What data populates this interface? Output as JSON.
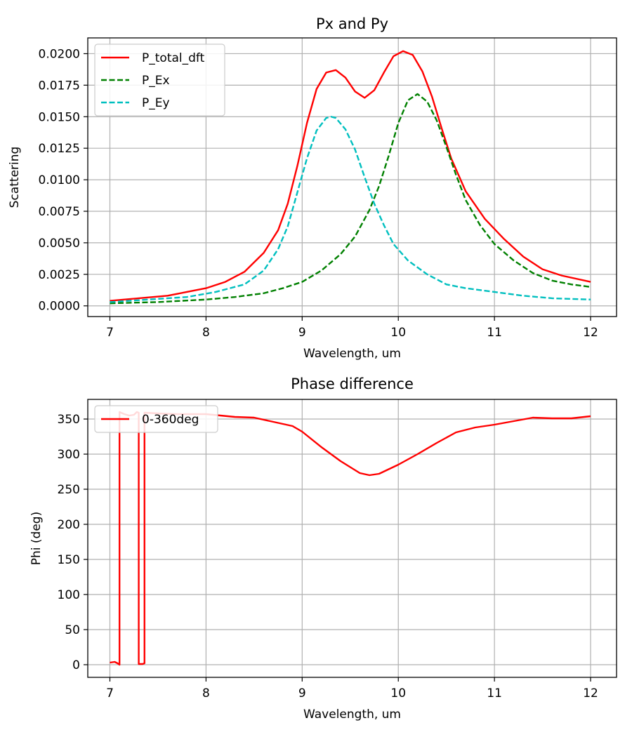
{
  "chart_data": [
    {
      "type": "line",
      "title": "Px and Py",
      "xlabel": "Wavelength, um",
      "ylabel": "Scattering",
      "xlim": [
        6.77,
        12.27
      ],
      "ylim": [
        -0.00085,
        0.02125
      ],
      "xticks": [
        7,
        8,
        9,
        10,
        11,
        12
      ],
      "xtick_labels": [
        "7",
        "8",
        "9",
        "10",
        "11",
        "12"
      ],
      "yticks": [
        0,
        0.0025,
        0.005,
        0.0075,
        0.01,
        0.0125,
        0.015,
        0.0175,
        0.02
      ],
      "ytick_labels": [
        "0.0000",
        "0.0025",
        "0.0050",
        "0.0075",
        "0.0100",
        "0.0125",
        "0.0150",
        "0.0175",
        "0.0200"
      ],
      "grid": true,
      "legend": "top-left",
      "series": [
        {
          "name": "P_total_dft",
          "color": "#ff0000",
          "dash": "solid",
          "x": [
            7.0,
            7.3,
            7.6,
            7.8,
            8.0,
            8.2,
            8.4,
            8.6,
            8.75,
            8.85,
            8.95,
            9.05,
            9.15,
            9.25,
            9.35,
            9.45,
            9.55,
            9.65,
            9.75,
            9.85,
            9.95,
            10.05,
            10.15,
            10.25,
            10.35,
            10.45,
            10.55,
            10.7,
            10.9,
            11.1,
            11.3,
            11.5,
            11.7,
            12.0
          ],
          "y": [
            0.0004,
            0.0006,
            0.0008,
            0.0011,
            0.0014,
            0.0019,
            0.0027,
            0.0042,
            0.006,
            0.0081,
            0.0111,
            0.0145,
            0.0172,
            0.0185,
            0.0187,
            0.0181,
            0.017,
            0.0165,
            0.0171,
            0.0185,
            0.0198,
            0.0202,
            0.0199,
            0.0186,
            0.0166,
            0.0141,
            0.0117,
            0.0091,
            0.0069,
            0.0053,
            0.0039,
            0.0029,
            0.0024,
            0.0019
          ]
        },
        {
          "name": "P_Ex",
          "color": "#008000",
          "dash": "dashed",
          "x": [
            7.0,
            7.5,
            8.0,
            8.3,
            8.6,
            8.8,
            9.0,
            9.2,
            9.4,
            9.55,
            9.7,
            9.8,
            9.9,
            10.0,
            10.1,
            10.2,
            10.3,
            10.4,
            10.5,
            10.6,
            10.7,
            10.85,
            11.0,
            11.2,
            11.4,
            11.6,
            11.8,
            12.0
          ],
          "y": [
            0.0002,
            0.0003,
            0.0005,
            0.0007,
            0.001,
            0.0014,
            0.0019,
            0.0028,
            0.0041,
            0.0055,
            0.0076,
            0.0095,
            0.0119,
            0.0145,
            0.0163,
            0.0168,
            0.0162,
            0.0147,
            0.0126,
            0.0104,
            0.0084,
            0.0064,
            0.0049,
            0.0036,
            0.0026,
            0.002,
            0.0017,
            0.0015
          ]
        },
        {
          "name": "P_Ey",
          "color": "#00bfbf",
          "dash": "dashed",
          "x": [
            7.0,
            7.4,
            7.8,
            8.1,
            8.4,
            8.6,
            8.75,
            8.85,
            8.95,
            9.05,
            9.15,
            9.25,
            9.3,
            9.35,
            9.45,
            9.55,
            9.65,
            9.75,
            9.85,
            9.95,
            10.1,
            10.3,
            10.5,
            10.7,
            11.0,
            11.3,
            11.6,
            12.0
          ],
          "y": [
            0.0003,
            0.0005,
            0.0007,
            0.0011,
            0.0017,
            0.0028,
            0.0045,
            0.0063,
            0.009,
            0.0117,
            0.0139,
            0.0149,
            0.015,
            0.0149,
            0.014,
            0.0124,
            0.0102,
            0.0081,
            0.0064,
            0.0049,
            0.0036,
            0.0025,
            0.0017,
            0.0014,
            0.0011,
            0.0008,
            0.0006,
            0.0005
          ]
        }
      ]
    },
    {
      "type": "line",
      "title": "Phase difference",
      "xlabel": "Wavelength, um",
      "ylabel": "Phi (deg)",
      "xlim": [
        6.77,
        12.27
      ],
      "ylim": [
        -18,
        378
      ],
      "xticks": [
        7,
        8,
        9,
        10,
        11,
        12
      ],
      "xtick_labels": [
        "7",
        "8",
        "9",
        "10",
        "11",
        "12"
      ],
      "yticks": [
        0,
        50,
        100,
        150,
        200,
        250,
        300,
        350
      ],
      "ytick_labels": [
        "0",
        "50",
        "100",
        "150",
        "200",
        "250",
        "300",
        "350"
      ],
      "grid": true,
      "legend": "top-left",
      "series": [
        {
          "name": "0-360deg",
          "color": "#ff0000",
          "dash": "solid",
          "x": [
            7.0,
            7.05,
            7.08,
            7.1,
            7.1,
            7.15,
            7.2,
            7.25,
            7.28,
            7.3,
            7.3,
            7.34,
            7.36,
            7.36,
            7.5,
            7.7,
            8.0,
            8.3,
            8.5,
            8.7,
            8.9,
            9.0,
            9.2,
            9.4,
            9.6,
            9.7,
            9.8,
            10.0,
            10.2,
            10.4,
            10.6,
            10.8,
            11.0,
            11.2,
            11.4,
            11.6,
            11.8,
            12.0
          ],
          "y": [
            3,
            4,
            2,
            0,
            360,
            357,
            355,
            356,
            360,
            359,
            1,
            1,
            2,
            359,
            358,
            357,
            357,
            353,
            352,
            346,
            340,
            332,
            310,
            290,
            273,
            270,
            272,
            285,
            300,
            316,
            331,
            338,
            342,
            347,
            352,
            351,
            351,
            354
          ]
        }
      ]
    }
  ]
}
